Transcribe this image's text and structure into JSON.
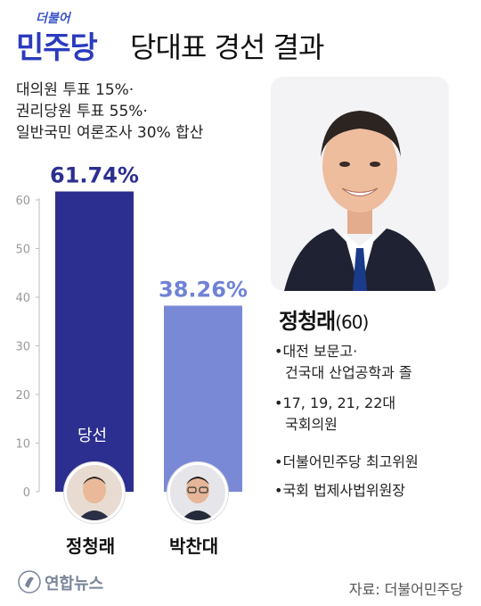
{
  "title": {
    "party_small": "더불어",
    "party_big": "민주당",
    "text": "당대표 경선 결과"
  },
  "notes": [
    "대의원 투표 15%·",
    "권리당원 투표 55%·",
    "일반국민 여론조사 30% 합산"
  ],
  "chart_data": {
    "type": "bar",
    "categories": [
      "정청래",
      "박찬대"
    ],
    "values": [
      61.74,
      38.26
    ],
    "value_labels": [
      "61.74%",
      "38.26%"
    ],
    "ylim": [
      0,
      70
    ],
    "yticks": [
      0,
      10,
      20,
      30,
      40,
      50,
      60
    ],
    "colors": [
      "#2c2f8f",
      "#7a89d6"
    ],
    "label_colors": [
      "#2c2f8f",
      "#6f82d6"
    ],
    "winner_label": "당선",
    "grid": false
  },
  "candidate": {
    "name": "정청래",
    "age": "(60)",
    "bullets": [
      {
        "line1": "•대전 보문고·",
        "line2": "건국대 산업공학과 졸"
      },
      {
        "line1": "•17, 19, 21, 22대",
        "line2": "국회의원"
      },
      {
        "line1": "•더불어민주당 최고위원",
        "line2": ""
      },
      {
        "line1": "•국회 법제사법위원장",
        "line2": ""
      }
    ]
  },
  "footer": {
    "logo_text": "연합뉴스",
    "source": "자료: 더불어민주당"
  },
  "colors": {
    "brand_blue": "#2b3bbd",
    "winner_bar": "#2c2f8f",
    "runner_bar": "#7a89d6"
  }
}
